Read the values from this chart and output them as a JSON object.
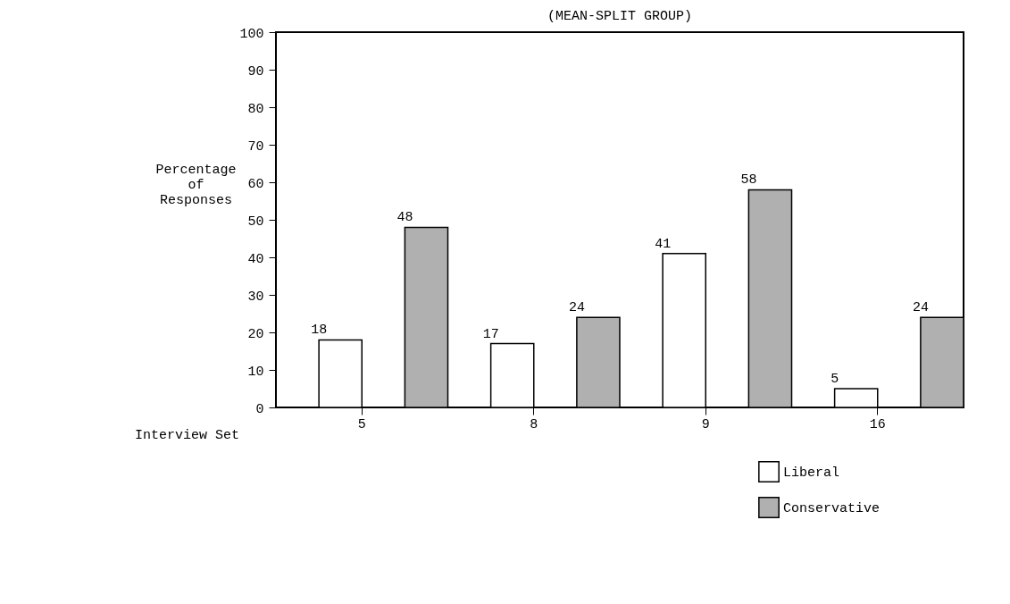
{
  "chart_data": {
    "type": "bar",
    "title": "(MEAN-SPLIT GROUP)",
    "xlabel": "Interview Set",
    "ylabel": "Percentage of Responses",
    "categories": [
      "5",
      "8",
      "9",
      "16"
    ],
    "series": [
      {
        "name": "Liberal",
        "color": "#ffffff",
        "values": [
          18,
          17,
          41,
          5
        ]
      },
      {
        "name": "Conservative",
        "color": "#b0b0b0",
        "values": [
          48,
          24,
          58,
          24
        ]
      }
    ],
    "ylim": [
      0,
      100
    ],
    "yticks": [
      0,
      10,
      20,
      30,
      40,
      50,
      60,
      70,
      80,
      90,
      100
    ],
    "grid": false,
    "legend": "bottom right",
    "data_labels": true
  }
}
